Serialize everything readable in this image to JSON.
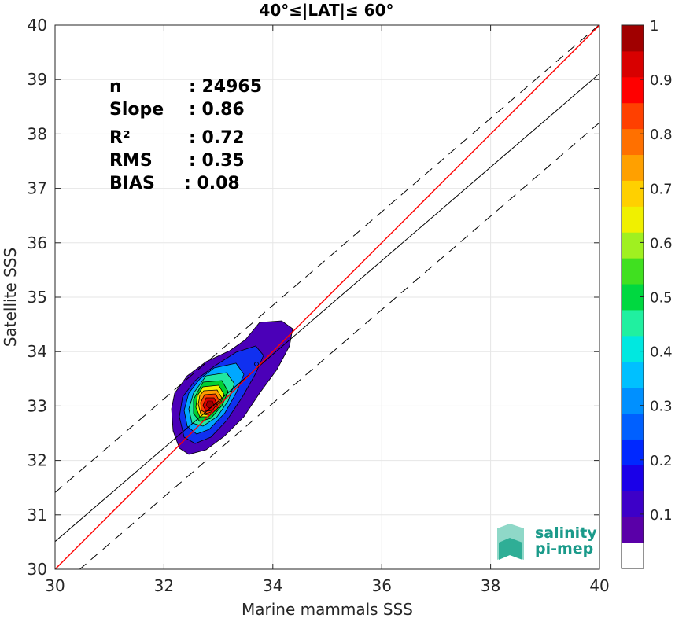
{
  "chart_data": {
    "type": "heatmap",
    "title": "40°≤|LAT|≤ 60°",
    "xlabel": "Marine mammals SSS",
    "ylabel": "Satellite SSS",
    "xlim": [
      30,
      40
    ],
    "ylim": [
      30,
      40
    ],
    "xticks": [
      "30",
      "32",
      "34",
      "36",
      "38",
      "40"
    ],
    "yticks": [
      "30",
      "31",
      "32",
      "33",
      "34",
      "35",
      "36",
      "37",
      "38",
      "39",
      "40"
    ],
    "grid": true,
    "stats": [
      {
        "label": "n",
        "value": ": 24965"
      },
      {
        "label": "Slope",
        "value": ": 0.86"
      },
      {
        "label": "R²",
        "value": ": 0.72"
      },
      {
        "label": "RMS",
        "value": ": 0.35"
      },
      {
        "label": "BIAS",
        "value": ": 0.08"
      }
    ],
    "regression": {
      "slope": 0.86,
      "intercept": 4.71
    },
    "identity_line": {
      "slope": 1,
      "intercept": 0,
      "color": "#ff0000"
    },
    "offset_lines": [
      {
        "slope": 0.86,
        "intercept": 5.61
      },
      {
        "slope": 0.86,
        "intercept": 3.81
      }
    ],
    "density_peak": {
      "x": 32.85,
      "y": 32.85
    },
    "colorbar": {
      "min": 0,
      "max": 1,
      "ticks": [
        "0.1",
        "0.2",
        "0.3",
        "0.4",
        "0.5",
        "0.6",
        "0.7",
        "0.8",
        "0.9",
        "1"
      ],
      "colors": [
        "#ffffff",
        "#5a00a8",
        "#3d00c8",
        "#1a00e8",
        "#0028ff",
        "#0060ff",
        "#0090ff",
        "#00c0ff",
        "#00e8e0",
        "#20f0a0",
        "#00d840",
        "#40e020",
        "#a0f020",
        "#f0f000",
        "#ffd000",
        "#ffa000",
        "#ff7000",
        "#ff4000",
        "#ff0000",
        "#d80000",
        "#a00000"
      ]
    }
  },
  "logo": {
    "line1": "salinity",
    "line2": "pi-mep"
  }
}
